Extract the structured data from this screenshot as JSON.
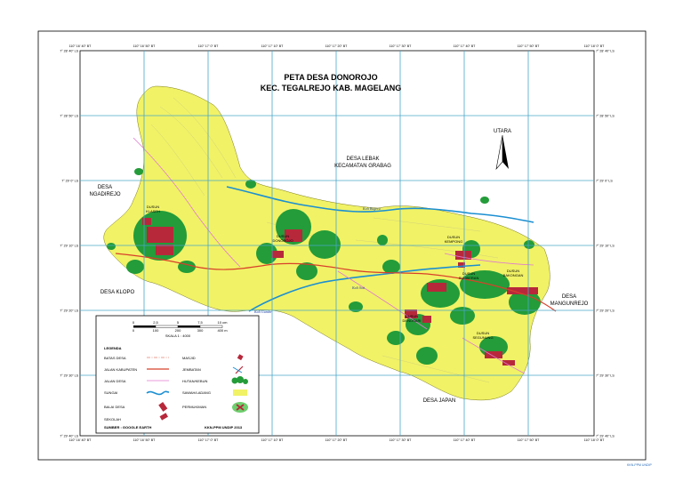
{
  "title": {
    "line1": "PETA DESA DONOROJO",
    "line2": "KEC. TEGALREJO KAB. MAGELANG"
  },
  "north": "UTARA",
  "coords": {
    "top": [
      "110° 16' 40\" BT",
      "110° 16' 50\" BT",
      "110° 17' 0\" BT",
      "110° 17' 10\" BT",
      "110° 17' 20\" BT",
      "110° 17' 30\" BT",
      "110° 17' 40\" BT",
      "110° 17' 50\" BT",
      "110° 18' 0\" BT"
    ],
    "left": [
      "7° 28' 40\" LS",
      "7° 28' 50\" LS",
      "7° 29' 0\" LS",
      "7° 29' 10\" LS",
      "7° 29' 20\" LS",
      "7° 29' 30\" LS",
      "7° 29' 40\" LS"
    ]
  },
  "places": {
    "lebak1": "DESA LEBAK",
    "lebak2": "KECAMATAN GRABAG",
    "ngadirejo1": "DESA",
    "ngadirejo2": "NGADIREJO",
    "klopo": "DESA KLOPO",
    "mangunrejo1": "DESA",
    "mangunrejo2": "MANGUNREJO",
    "japan": "DESA JAPAN"
  },
  "dusun": [
    {
      "l1": "DUSUN",
      "l2": "KLASEH"
    },
    {
      "l1": "DUSUN",
      "l2": "DONOROJO"
    },
    {
      "l1": "DUSUN",
      "l2": "KEMPONG"
    },
    {
      "l1": "DUSUN",
      "l2": "SUMBERAN"
    },
    {
      "l1": "DUSUN",
      "l2": "BAKONGAN"
    },
    {
      "l1": "DUSUN",
      "l2": "DENOSARI"
    },
    {
      "l1": "DUSUN",
      "l2": "SEGUNUNG"
    }
  ],
  "rivers": {
    "bugeru": "Kali Bugeru",
    "soti": "Kali Soti",
    "gumbe": "Kali Gumbe"
  },
  "scale": {
    "ticks": [
      "0",
      "2,5",
      "5",
      "7,5",
      "10 cm"
    ],
    "ticks_m": [
      "0",
      "100",
      "200",
      "300",
      "400 m"
    ],
    "label": "SKALA 1 : 4000"
  },
  "legend": {
    "title": "LEGENDA",
    "left": [
      "BATAS DESA",
      "JALAN KABUPATEN",
      "JALAN DESA",
      "SUNGAI",
      "BALAI DESA",
      "SEKOLAH"
    ],
    "right": [
      "MASJID",
      "JEMBATAN",
      "HUTAN/KEBUN",
      "SAWAH/LADANG",
      "PERMUKIMAN"
    ],
    "source": "SUMBER : GOOGLE EARTH",
    "credit": "KKN-PPM UNDIP 2013"
  },
  "footer": "KKN-PPM UNDIP",
  "colors": {
    "land": "#f1f266",
    "grid": "#4aa6c9",
    "forest": "#239c39",
    "settlement": "#b7283b",
    "road_kab": "#d8402b",
    "road_desa": "#e07ad0",
    "river": "#1b8fd2"
  }
}
